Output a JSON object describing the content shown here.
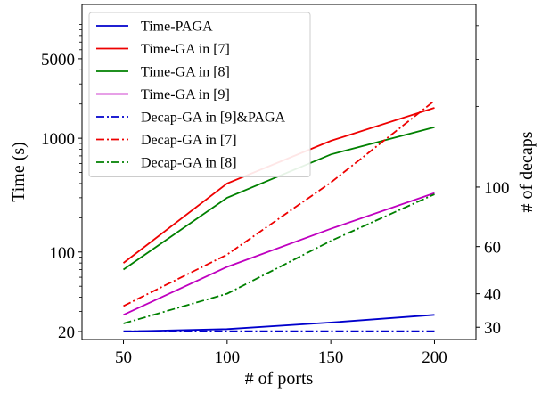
{
  "chart_data": {
    "type": "line",
    "x": [
      50,
      100,
      150,
      200
    ],
    "xlabel": "# of ports",
    "ylabel_left": "Time (s)",
    "ylabel_right": "# of decaps",
    "xlim": [
      30,
      220
    ],
    "ylim_left": [
      17,
      15000
    ],
    "yscale_left": "log",
    "ylim_right": [
      27,
      480
    ],
    "yscale_right": "log",
    "xticks": [
      50,
      100,
      150,
      200
    ],
    "yticks_left": [
      20,
      100,
      1000,
      5000
    ],
    "yticks_right": [
      30,
      40,
      60,
      100
    ],
    "legend_position": "top-left",
    "grid": false,
    "series": [
      {
        "name": "Time-PAGA",
        "axis": "left",
        "color": "#0000cc",
        "style": "solid",
        "values": [
          20,
          21,
          24,
          28
        ]
      },
      {
        "name": "Time-GA in [7]",
        "axis": "left",
        "color": "#ee0000",
        "style": "solid",
        "values": [
          80,
          400,
          950,
          1850
        ]
      },
      {
        "name": "Time-GA in [8]",
        "axis": "left",
        "color": "#008000",
        "style": "solid",
        "values": [
          70,
          300,
          720,
          1250
        ]
      },
      {
        "name": "Time-GA in [9]",
        "axis": "left",
        "color": "#bf00bf",
        "style": "solid",
        "values": [
          28,
          74,
          160,
          330
        ]
      },
      {
        "name": "Decap-GA in [9]&PAGA",
        "axis": "right",
        "color": "#0000cc",
        "style": "dashdot",
        "values": [
          29,
          29,
          29,
          29
        ]
      },
      {
        "name": "Decap-GA in [7]",
        "axis": "right",
        "color": "#ee0000",
        "style": "dashdot",
        "values": [
          36,
          56,
          104,
          210
        ]
      },
      {
        "name": "Decap-GA in [8]",
        "axis": "right",
        "color": "#008000",
        "style": "dashdot",
        "values": [
          31,
          40,
          63,
          94
        ]
      }
    ]
  }
}
